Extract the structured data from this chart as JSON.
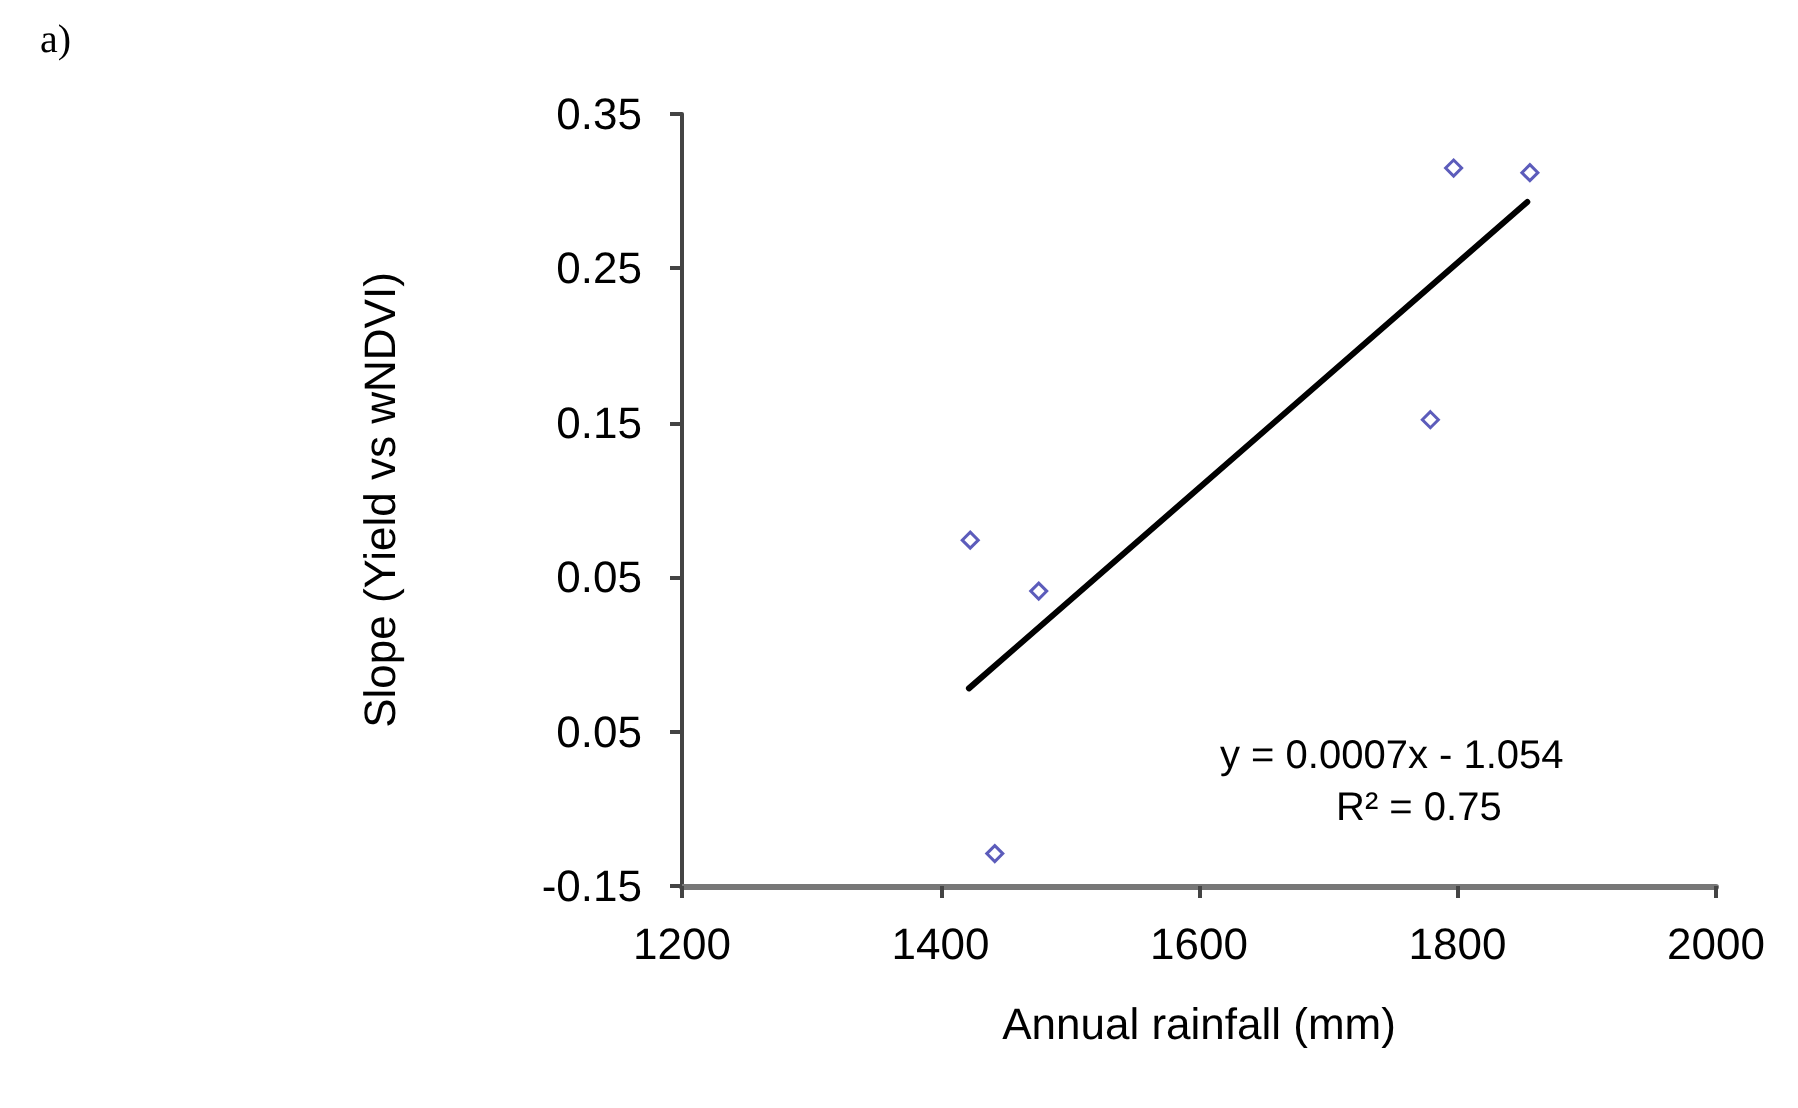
{
  "chart_data": {
    "type": "scatter",
    "xlabel": "Annual rainfall (mm)",
    "ylabel": "Slope (Yield vs wNDVI)",
    "annotations": [
      "a)",
      "y = 0.0007x - 1.054",
      "R² = 0.75"
    ],
    "series": [
      {
        "color": "#3333aa",
        "marker": "diamond",
        "x": [
          1423,
          1476,
          1442,
          1779,
          1797,
          1856
        ],
        "values": [
          0.074,
          0.041,
          -0.129,
          0.152,
          0.315,
          0.312
        ]
      },
      {
        "type": "line",
        "color": "#000000",
        "marker": "none",
        "line_style": "solid",
        "x": [
          1422,
          1854
        ],
        "values": [
          -0.022,
          0.293
        ]
      }
    ],
    "xlim": [
      1200,
      2000
    ],
    "xticks": [
      1200,
      1400,
      1600,
      1800,
      2000
    ],
    "ylim": [
      -0.15,
      0.35
    ],
    "yticks": [
      {
        "value": -0.15,
        "label": "-0.15"
      },
      {
        "value": -0.05,
        "label": "0.05"
      },
      {
        "value": 0.05,
        "label": "0.05"
      },
      {
        "value": 0.15,
        "label": "0.15"
      },
      {
        "value": 0.25,
        "label": "0.25"
      },
      {
        "value": 0.35,
        "label": "0.35"
      }
    ],
    "grid": false
  }
}
